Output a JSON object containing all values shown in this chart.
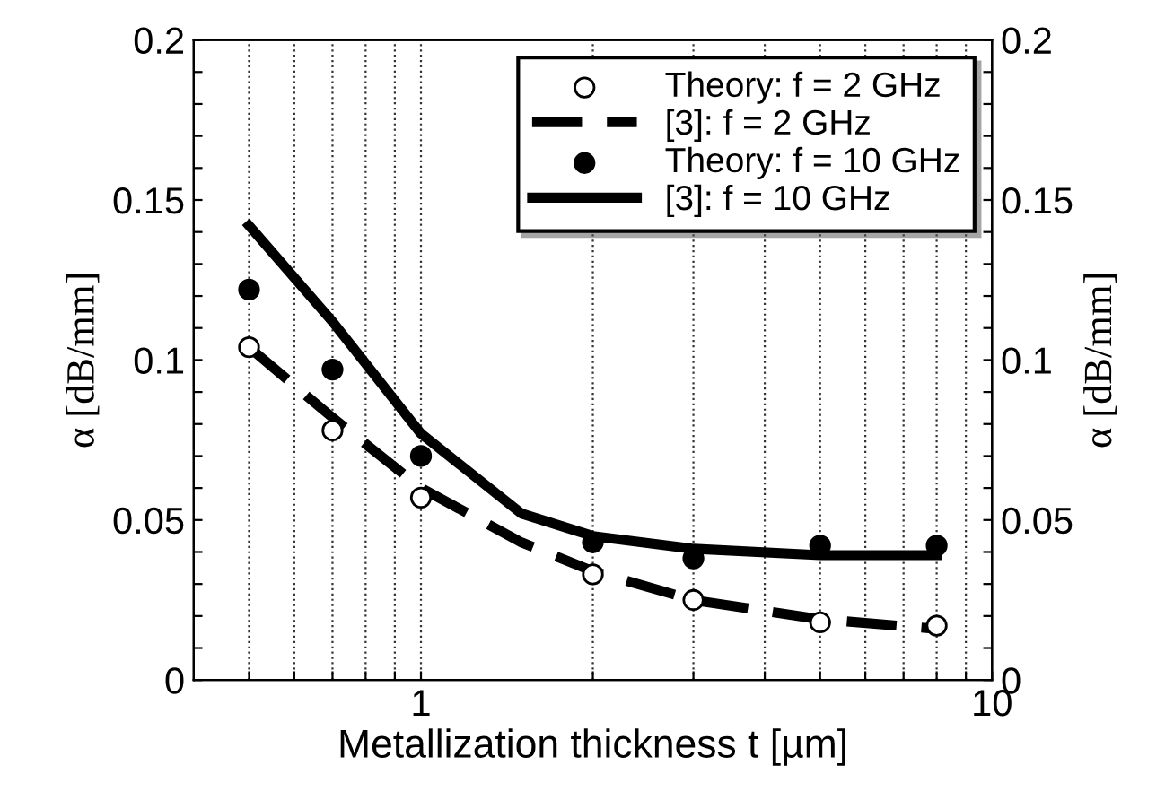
{
  "chart_data": {
    "type": "line",
    "xlabel": "Metallization thickness t [µm]",
    "ylabel": "α [dB/mm]",
    "y2label": "α [dB/mm]",
    "log": "x",
    "xlim": [
      0.4,
      10
    ],
    "xticks": [
      {
        "value": 0.5,
        "label": null
      },
      {
        "value": 0.6,
        "label": null
      },
      {
        "value": 0.7,
        "label": null
      },
      {
        "value": 0.8,
        "label": null
      },
      {
        "value": 0.9,
        "label": null
      },
      1,
      {
        "value": 2,
        "label": null
      },
      {
        "value": 3,
        "label": null
      },
      {
        "value": 4,
        "label": null
      },
      {
        "value": 5,
        "label": null
      },
      {
        "value": 6,
        "label": null
      },
      {
        "value": 7,
        "label": null
      },
      {
        "value": 8,
        "label": null
      },
      {
        "value": 9,
        "label": null
      },
      10
    ],
    "ylim": [
      0,
      0.2
    ],
    "yticks": [
      0,
      {
        "value": 0.01,
        "label": null
      },
      {
        "value": 0.02,
        "label": null
      },
      {
        "value": 0.03,
        "label": null
      },
      {
        "value": 0.04,
        "label": null
      },
      0.05,
      {
        "value": 0.06,
        "label": null
      },
      {
        "value": 0.07,
        "label": null
      },
      {
        "value": 0.08,
        "label": null
      },
      {
        "value": 0.09,
        "label": null
      },
      0.1,
      {
        "value": 0.11,
        "label": null
      },
      {
        "value": 0.12,
        "label": null
      },
      {
        "value": 0.13,
        "label": null
      },
      {
        "value": 0.14,
        "label": null
      },
      0.15,
      {
        "value": 0.16,
        "label": null
      },
      {
        "value": 0.17,
        "label": null
      },
      {
        "value": 0.18,
        "label": null
      },
      {
        "value": 0.19,
        "label": null
      },
      0.2
    ],
    "y2lim": [
      0,
      0.2
    ],
    "y2ticks": [
      0,
      {
        "value": 0.01,
        "label": null
      },
      {
        "value": 0.02,
        "label": null
      },
      {
        "value": 0.03,
        "label": null
      },
      {
        "value": 0.04,
        "label": null
      },
      0.05,
      {
        "value": 0.06,
        "label": null
      },
      {
        "value": 0.07,
        "label": null
      },
      {
        "value": 0.08,
        "label": null
      },
      {
        "value": 0.09,
        "label": null
      },
      0.1,
      {
        "value": 0.11,
        "label": null
      },
      {
        "value": 0.12,
        "label": null
      },
      {
        "value": 0.13,
        "label": null
      },
      {
        "value": 0.14,
        "label": null
      },
      0.15,
      {
        "value": 0.16,
        "label": null
      },
      {
        "value": 0.17,
        "label": null
      },
      {
        "value": 0.18,
        "label": null
      },
      {
        "value": 0.19,
        "label": null
      },
      0.2
    ],
    "grid": "x",
    "legend": "top right",
    "series": [
      {
        "name": "Theory: f = 2 GHz",
        "type": "scatter",
        "marker": "circle",
        "color": "#ffffff",
        "x": [
          0.5,
          0.7,
          1,
          2,
          3,
          5,
          8
        ],
        "values": [
          0.104,
          0.078,
          0.057,
          0.033,
          0.025,
          0.018,
          0.017
        ]
      },
      {
        "name": "[3]: f = 2 GHz",
        "line_style": "dashed",
        "color": "#000000",
        "x": [
          0.5,
          0.7,
          1,
          1.5,
          2,
          3,
          5,
          8
        ],
        "values": [
          0.104,
          0.082,
          0.06,
          0.043,
          0.034,
          0.025,
          0.019,
          0.016
        ]
      },
      {
        "name": "Theory: f = 10 GHz",
        "type": "scatter",
        "marker": "circle",
        "color": "#000000",
        "x": [
          0.5,
          0.7,
          1,
          2,
          3,
          5,
          8
        ],
        "values": [
          0.122,
          0.097,
          0.07,
          0.043,
          0.038,
          0.042,
          0.042
        ]
      },
      {
        "name": "[3]: f = 10 GHz",
        "line_style": "solid",
        "color": "#000000",
        "x": [
          0.5,
          0.7,
          1,
          1.5,
          2,
          3,
          5,
          8
        ],
        "values": [
          0.142,
          0.112,
          0.077,
          0.052,
          0.045,
          0.041,
          0.039,
          0.039
        ]
      }
    ]
  }
}
